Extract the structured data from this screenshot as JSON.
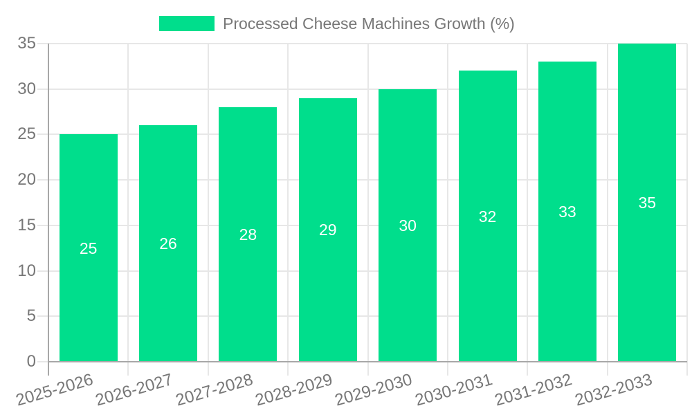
{
  "chart_data": {
    "type": "bar",
    "title": "",
    "legend_position": "top",
    "categories": [
      "2025-2026",
      "2026-2027",
      "2027-2028",
      "2028-2029",
      "2029-2030",
      "2030-2031",
      "2031-2032",
      "2032-2033"
    ],
    "series": [
      {
        "name": "Processed Cheese Machines Growth (%)",
        "values": [
          25,
          26,
          28,
          29,
          30,
          32,
          33,
          35
        ]
      }
    ],
    "xlabel": "",
    "ylabel": "",
    "ylim": [
      0,
      35
    ],
    "yticks": [
      0,
      5,
      10,
      15,
      20,
      25,
      30,
      35
    ],
    "grid": true,
    "value_labels_position": "inside-center",
    "colors": {
      "bar": "#00DE8C",
      "grid": "#E7E7E7",
      "axis": "#A8A8A8",
      "tick_label": "#777777",
      "legend_label": "#777777",
      "value_label": "#FFFFFF",
      "background": "#FFFFFF"
    }
  }
}
